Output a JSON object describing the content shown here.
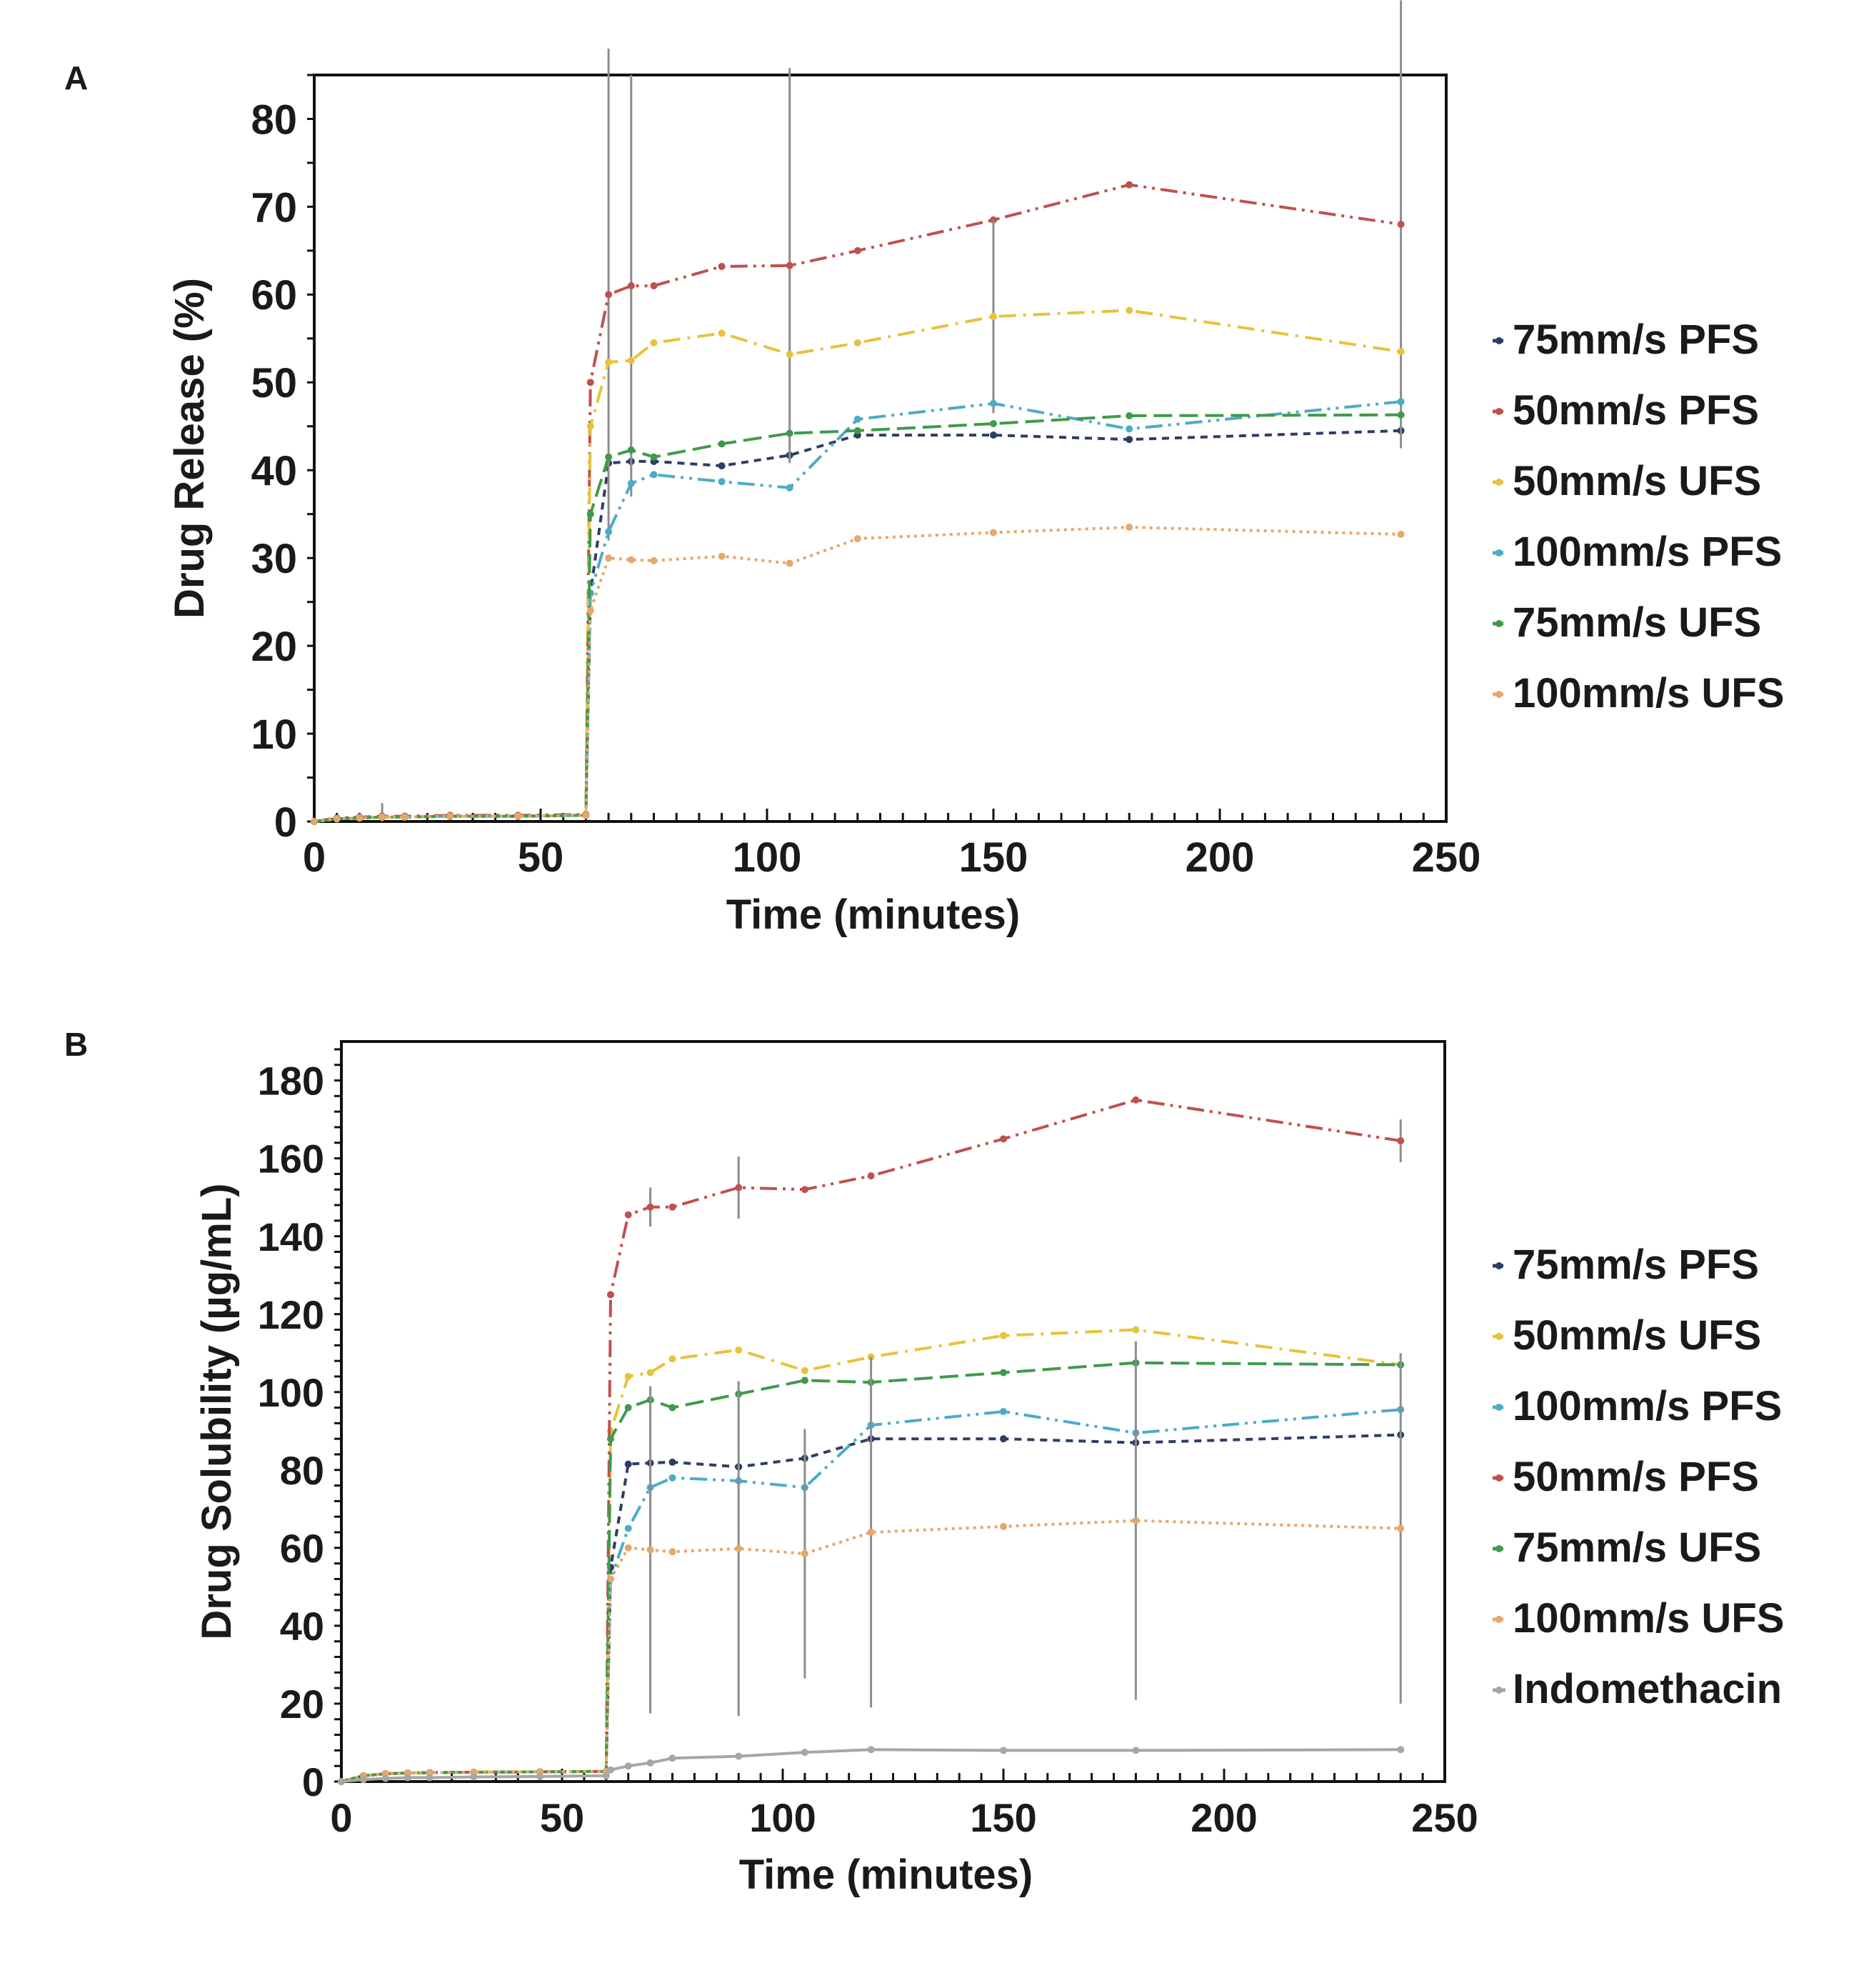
{
  "chart_data": [
    {
      "panel_label": "A",
      "type": "line",
      "xlabel": "Time (minutes)",
      "ylabel": "Drug Release (%)",
      "xlim": [
        0,
        250
      ],
      "ylim": [
        0,
        85
      ],
      "x_ticks": [
        0,
        50,
        100,
        150,
        200,
        250
      ],
      "y_ticks": [
        0,
        10,
        20,
        30,
        40,
        50,
        60,
        70,
        80
      ],
      "grid": false,
      "legend_position": "right",
      "x": [
        0,
        5,
        10,
        15,
        20,
        30,
        45,
        60,
        61,
        65,
        70,
        75,
        90,
        105,
        120,
        150,
        180,
        240
      ],
      "series": [
        {
          "name": "75mm/s PFS",
          "color": "#2e3d66",
          "dash": "dash",
          "values": [
            0,
            0.3,
            0.4,
            0.5,
            0.5,
            0.6,
            0.6,
            0.7,
            26,
            40.8,
            41,
            41,
            40.5,
            41.7,
            44,
            44,
            43.5,
            44.5
          ],
          "error": [
            0,
            0,
            0,
            0,
            0,
            0,
            0,
            0,
            0,
            0,
            0,
            0,
            0,
            0,
            0,
            0,
            0,
            0
          ]
        },
        {
          "name": "50mm/s PFS",
          "color": "#c0504d",
          "dash": "dashdotdot",
          "values": [
            0,
            0.4,
            0.5,
            0.6,
            0.6,
            0.7,
            0.7,
            0.8,
            50,
            60,
            61,
            61,
            63.2,
            63.3,
            65,
            68.5,
            72.5,
            68
          ],
          "error": [
            0,
            0,
            0,
            1.5,
            0,
            0,
            0,
            0,
            0,
            28,
            24,
            0,
            0,
            22.5,
            0,
            0,
            0,
            25.5
          ]
        },
        {
          "name": "50mm/s UFS",
          "color": "#e8c23a",
          "dash": "dashdot",
          "values": [
            0,
            0.3,
            0.4,
            0.5,
            0.5,
            0.6,
            0.6,
            0.7,
            45,
            52.3,
            52.5,
            54.5,
            55.6,
            53.2,
            54.5,
            57.5,
            58.2,
            53.5
          ],
          "error": [
            0,
            0,
            0,
            0,
            0,
            0,
            0,
            0,
            0,
            0,
            0,
            0,
            0,
            0,
            0,
            11,
            0,
            0
          ]
        },
        {
          "name": "100mm/s PFS",
          "color": "#4bacc6",
          "dash": "dashdotdot",
          "values": [
            0,
            0.3,
            0.4,
            0.5,
            0.5,
            0.6,
            0.6,
            0.7,
            26,
            33,
            38.5,
            39.5,
            38.7,
            38,
            45.8,
            47.6,
            44.7,
            47.8
          ],
          "error": [
            0,
            0,
            0,
            0,
            0,
            0,
            0,
            0,
            0,
            0,
            0,
            0,
            0,
            0,
            0,
            0,
            0,
            0
          ]
        },
        {
          "name": "75mm/s UFS",
          "color": "#3e9b4a",
          "dash": "longdash",
          "values": [
            0,
            0.3,
            0.4,
            0.5,
            0.5,
            0.6,
            0.6,
            0.7,
            35,
            41.5,
            42.3,
            41.5,
            43,
            44.2,
            44.5,
            45.3,
            46.2,
            46.3
          ],
          "error": [
            0,
            0,
            0,
            0,
            0,
            0,
            0,
            0,
            0,
            0,
            0,
            0,
            0,
            0,
            0,
            0,
            0,
            0
          ]
        },
        {
          "name": "100mm/s UFS",
          "color": "#e6a76b",
          "dash": "dot",
          "values": [
            0,
            0.3,
            0.4,
            0.5,
            0.5,
            0.6,
            0.6,
            0.7,
            24,
            30,
            29.8,
            29.7,
            30.2,
            29.4,
            32.2,
            32.9,
            33.5,
            32.7
          ],
          "error": [
            0,
            0,
            0,
            0,
            0,
            0,
            0,
            0,
            0,
            0,
            0,
            0,
            0,
            0,
            0,
            0,
            0,
            0
          ]
        }
      ]
    },
    {
      "panel_label": "B",
      "type": "line",
      "xlabel": "Time (minutes)",
      "ylabel": "Drug Solubility (µg/mL)",
      "xlim": [
        0,
        250
      ],
      "ylim": [
        0,
        190
      ],
      "x_ticks": [
        0,
        50,
        100,
        150,
        200,
        250
      ],
      "y_ticks": [
        0,
        20,
        40,
        60,
        80,
        100,
        120,
        140,
        160,
        180
      ],
      "grid": false,
      "legend_position": "right",
      "x": [
        0,
        5,
        10,
        15,
        20,
        30,
        45,
        60,
        61,
        65,
        70,
        75,
        90,
        105,
        120,
        150,
        180,
        240
      ],
      "series": [
        {
          "name": "75mm/s PFS",
          "color": "#2e3d66",
          "dash": "dash",
          "values": [
            0,
            1.5,
            2,
            2.2,
            2.3,
            2.4,
            2.5,
            2.6,
            55,
            81.5,
            81.8,
            82,
            80.8,
            83,
            88,
            88,
            87,
            89
          ],
          "error": [
            0,
            0,
            0,
            0,
            0,
            0,
            0,
            0,
            0,
            0,
            0,
            0,
            0,
            0,
            0,
            0,
            0,
            0
          ]
        },
        {
          "name": "50mm/s UFS",
          "color": "#e8c23a",
          "dash": "dashdot",
          "values": [
            0,
            1.5,
            2,
            2.2,
            2.3,
            2.4,
            2.5,
            2.6,
            90,
            104,
            105,
            108.5,
            110.8,
            105.5,
            109,
            114.5,
            116,
            107
          ],
          "error": [
            0,
            0,
            0,
            0,
            0,
            0,
            0,
            0,
            0,
            0,
            0,
            0,
            0,
            0,
            0,
            0,
            0,
            0
          ]
        },
        {
          "name": "100mm/s PFS",
          "color": "#4bacc6",
          "dash": "dashdotdot",
          "values": [
            0,
            1.5,
            2,
            2.2,
            2.3,
            2.4,
            2.5,
            2.6,
            52,
            65,
            75.5,
            78,
            77.2,
            75.5,
            91.5,
            95,
            89.5,
            95.5
          ],
          "error": [
            0,
            0,
            0,
            0,
            0,
            0,
            0,
            0,
            0,
            0,
            0,
            0,
            0,
            0,
            0,
            0,
            0,
            0
          ]
        },
        {
          "name": "50mm/s PFS",
          "color": "#c0504d",
          "dash": "dashdotdot",
          "values": [
            0,
            1.5,
            2,
            2.2,
            2.3,
            2.4,
            2.5,
            2.6,
            125,
            145.5,
            147.5,
            147.5,
            152.5,
            152,
            155.5,
            165,
            175,
            164.5
          ],
          "error": [
            0,
            0,
            0,
            0,
            0,
            0,
            0,
            0,
            0,
            0,
            5,
            0,
            8,
            0,
            0,
            0,
            0,
            5.5
          ]
        },
        {
          "name": "75mm/s UFS",
          "color": "#3e9b4a",
          "dash": "longdash",
          "values": [
            0,
            1.5,
            2,
            2.2,
            2.3,
            2.4,
            2.5,
            2.6,
            88,
            96,
            98,
            96,
            99.5,
            103,
            102.5,
            105,
            107.5,
            107
          ],
          "error": [
            0,
            0,
            0,
            0,
            0,
            0,
            0,
            0,
            0,
            0,
            0,
            0,
            0,
            0,
            0,
            0,
            0,
            0
          ]
        },
        {
          "name": "100mm/s UFS",
          "color": "#e6a76b",
          "dash": "dot",
          "values": [
            0,
            1.5,
            2,
            2.2,
            2.3,
            2.4,
            2.5,
            2.6,
            52,
            60,
            59.5,
            59,
            59.8,
            58.5,
            64,
            65.5,
            67,
            65
          ],
          "error": [
            0,
            0,
            0,
            0,
            0,
            0,
            0,
            0,
            0,
            0,
            42,
            0,
            43,
            32,
            45,
            0,
            46,
            45
          ]
        },
        {
          "name": "Indomethacin",
          "color": "#a6a6a6",
          "dash": "solid",
          "values": [
            0,
            0.5,
            0.8,
            1,
            1,
            1.2,
            1.3,
            1.5,
            3,
            4,
            4.8,
            6,
            6.5,
            7.5,
            8.2,
            8,
            8,
            8.2
          ],
          "error": [
            0,
            0,
            0,
            0,
            0,
            0,
            0,
            0,
            0,
            0,
            0,
            0,
            0,
            0,
            0,
            0,
            0,
            0
          ]
        }
      ]
    }
  ]
}
